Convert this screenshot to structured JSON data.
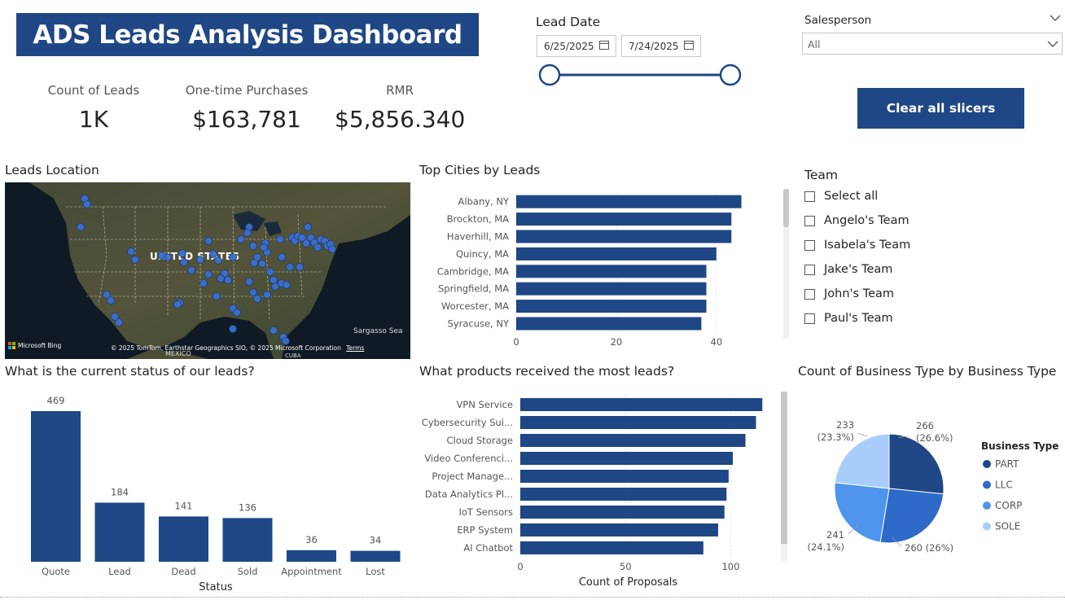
{
  "header": {
    "title": "ADS Leads Analysis Dashboard"
  },
  "kpis": [
    {
      "label": "Count of Leads",
      "value": "1K"
    },
    {
      "label": "One-time Purchases",
      "value": "$163,781"
    },
    {
      "label": "RMR",
      "value": "$5,856.340"
    }
  ],
  "lead_date": {
    "label": "Lead Date",
    "start": "6/25/2025",
    "end": "7/24/2025"
  },
  "salesperson": {
    "label": "Salesperson",
    "selected": "All"
  },
  "clear_button": "Clear all slicers",
  "team_filter": {
    "title": "Team",
    "items": [
      "Select all",
      "Angelo's Team",
      "Isabela's Team",
      "Jake's Team",
      "John's Team",
      "Paul's Team"
    ]
  },
  "map": {
    "title": "Leads Location",
    "country_label": "UNITED STATES",
    "sea_label": "Sargasso Sea",
    "mexico_label": "MEXICO",
    "cuba_label": "CUBA",
    "bing": "Microsoft Bing",
    "copyright": "© 2025 TomTom, Earthstar Geographics SIO, © 2025 Microsoft Corporation",
    "terms": "Terms"
  },
  "chart_data": [
    {
      "type": "bar",
      "orientation": "horizontal",
      "title": "Top Cities by Leads",
      "categories": [
        "Albany, NY",
        "Brockton, MA",
        "Haverhill, MA",
        "Quincy, MA",
        "Cambridge, MA",
        "Springfield, MA",
        "Worcester, MA",
        "Syracuse, NY"
      ],
      "values": [
        45,
        43,
        43,
        40,
        38,
        38,
        38,
        37
      ],
      "xlim": [
        0,
        48
      ],
      "ticks": [
        0,
        20,
        40
      ],
      "color": "#1f4785"
    },
    {
      "type": "bar",
      "title": "What is the current status of our leads?",
      "xlabel": "Status",
      "categories": [
        "Quote",
        "Lead",
        "Dead",
        "Sold",
        "Appointment",
        "Lost"
      ],
      "values": [
        469,
        184,
        141,
        136,
        36,
        34
      ],
      "ylim": [
        0,
        469
      ],
      "color": "#1f4785"
    },
    {
      "type": "bar",
      "orientation": "horizontal",
      "title": "What products received the most leads?",
      "xlabel": "Count of Proposals",
      "categories": [
        "VPN Service",
        "Cybersecurity Sui...",
        "Cloud Storage",
        "Video Conferenci...",
        "Project Manage...",
        "Data Analytics Pl...",
        "IoT Sensors",
        "ERP System",
        "AI Chatbot"
      ],
      "values": [
        115,
        112,
        107,
        101,
        99,
        98,
        97,
        94,
        87
      ],
      "xlim": [
        0,
        118
      ],
      "ticks": [
        0,
        50,
        100
      ],
      "color": "#1f4785"
    },
    {
      "type": "pie",
      "title": "Count of Business Type by Business Type",
      "legend_title": "Business Type",
      "legend_position": "right",
      "slices": [
        {
          "name": "PART",
          "value": 266,
          "label": "266",
          "pct": "(26.6%)",
          "color": "#1f4785"
        },
        {
          "name": "LLC",
          "value": 260,
          "label": "260 (26%)",
          "pct": "",
          "color": "#2e6ac8"
        },
        {
          "name": "CORP",
          "value": 241,
          "label": "241",
          "pct": "(24.1%)",
          "color": "#4f95ee"
        },
        {
          "name": "SOLE",
          "value": 233,
          "label": "233",
          "pct": "(23.3%)",
          "color": "#a8cdfa"
        }
      ]
    }
  ]
}
